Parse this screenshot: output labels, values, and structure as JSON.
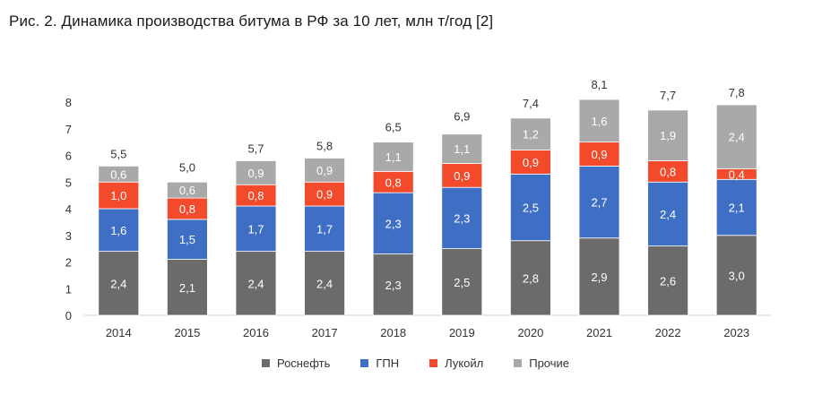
{
  "title": "Рис. 2. Динамика производства битума в РФ за 10 лет, млн т/год [2]",
  "chart_data": {
    "type": "bar",
    "stacked": true,
    "categories": [
      "2014",
      "2015",
      "2016",
      "2017",
      "2018",
      "2019",
      "2020",
      "2021",
      "2022",
      "2023"
    ],
    "ylim": [
      0,
      8
    ],
    "yticks": [
      "0",
      "1",
      "2",
      "3",
      "4",
      "5",
      "6",
      "7",
      "8"
    ],
    "series": [
      {
        "name": "Роснефть",
        "color": "#6b6b6b",
        "values": [
          2.4,
          2.1,
          2.4,
          2.4,
          2.3,
          2.5,
          2.8,
          2.9,
          2.6,
          3.0
        ],
        "labels": [
          "2,4",
          "2,1",
          "2,4",
          "2,4",
          "2,3",
          "2,5",
          "2,8",
          "2,9",
          "2,6",
          "3,0"
        ]
      },
      {
        "name": "ГПН",
        "color": "#3f6fc4",
        "values": [
          1.6,
          1.5,
          1.7,
          1.7,
          2.3,
          2.3,
          2.5,
          2.7,
          2.4,
          2.1
        ],
        "labels": [
          "1,6",
          "1,5",
          "1,7",
          "1,7",
          "2,3",
          "2,3",
          "2,5",
          "2,7",
          "2,4",
          "2,1"
        ]
      },
      {
        "name": "Лукойл",
        "color": "#f24a2a",
        "values": [
          1.0,
          0.8,
          0.8,
          0.9,
          0.8,
          0.9,
          0.9,
          0.9,
          0.8,
          0.4
        ],
        "labels": [
          "1,0",
          "0,8",
          "0,8",
          "0,9",
          "0,8",
          "0,9",
          "0,9",
          "0,9",
          "0,8",
          "0,4"
        ]
      },
      {
        "name": "Прочие",
        "color": "#a9a9a9",
        "values": [
          0.6,
          0.6,
          0.9,
          0.9,
          1.1,
          1.1,
          1.2,
          1.6,
          1.9,
          2.4
        ],
        "labels": [
          "0,6",
          "0,6",
          "0,9",
          "0,9",
          "1,1",
          "1,1",
          "1,2",
          "1,6",
          "1,9",
          "2,4"
        ]
      }
    ],
    "totals": [
      5.5,
      5.0,
      5.7,
      5.8,
      6.5,
      6.9,
      7.4,
      8.1,
      7.7,
      7.8
    ],
    "total_labels": [
      "5,5",
      "5,0",
      "5,7",
      "5,8",
      "6,5",
      "6,9",
      "7,4",
      "8,1",
      "7,7",
      "7,8"
    ],
    "legend_position": "bottom",
    "grid": false
  }
}
